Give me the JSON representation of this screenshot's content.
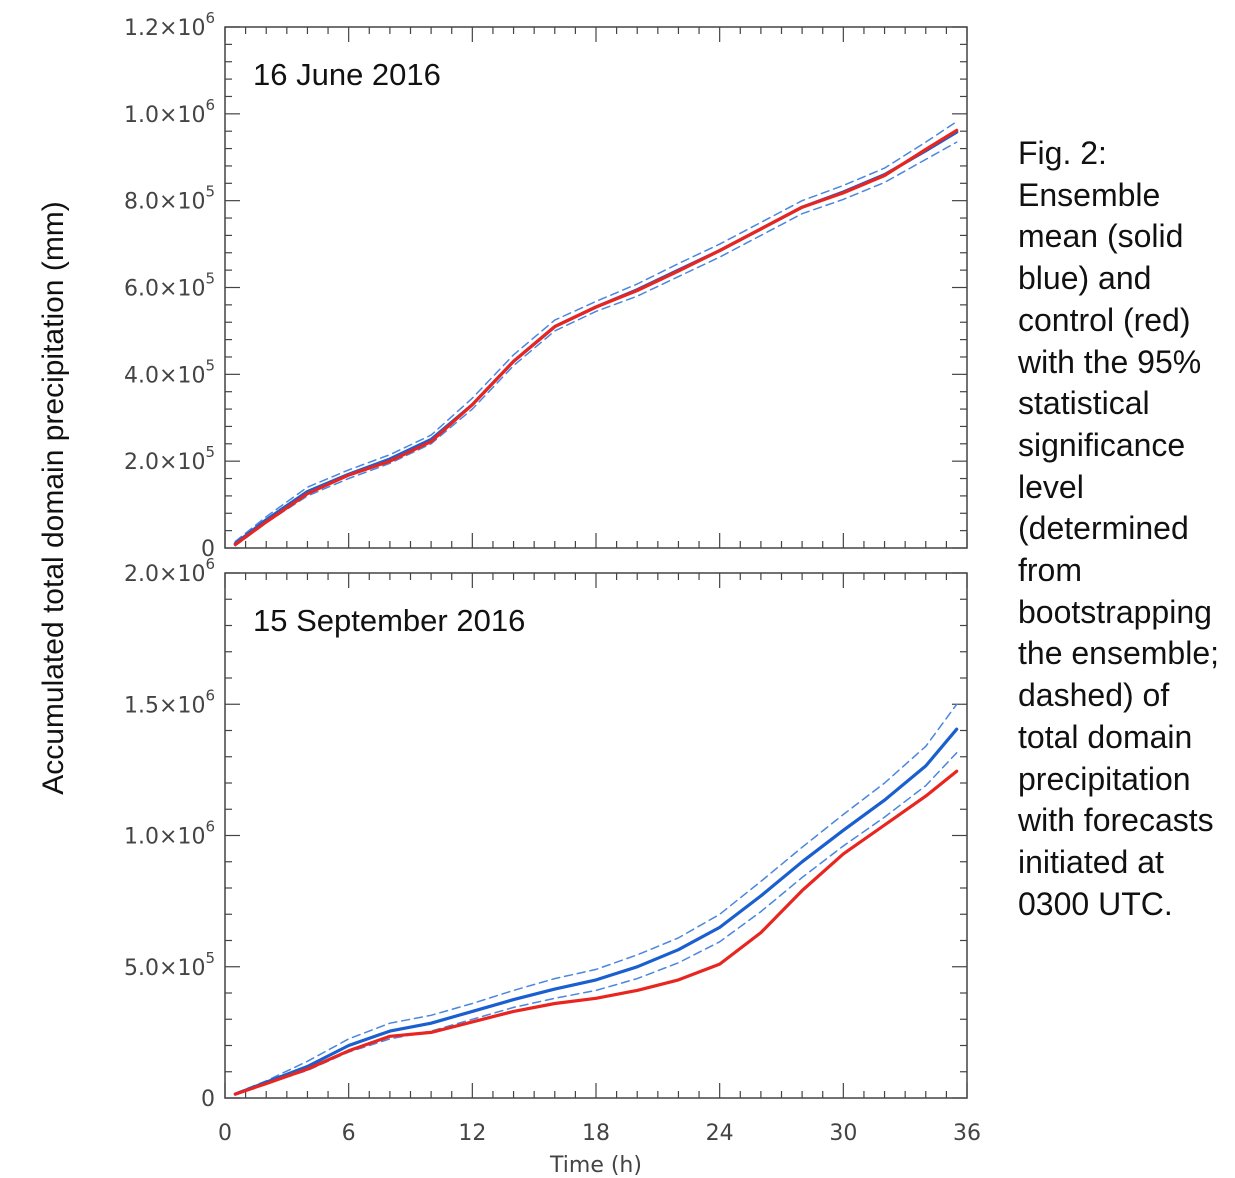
{
  "figure": {
    "ylabel": "Accumulated total domain precipitation (mm)",
    "xlabel": "Time (h)",
    "caption": "Fig. 2:\nEnsemble\nmean (solid\nblue) and\ncontrol (red)\nwith the 95%\nstatistical\nsignificance\nlevel\n(determined\nfrom\nbootstrapping\nthe ensemble;\ndashed) of\ntotal domain\nprecipitation\nwith forecasts\ninitiated at\n0300 UTC."
  },
  "colors": {
    "ensemble_mean": "#1a5fd0",
    "control": "#e8261f",
    "significance": "#4a86e0",
    "axes": "#444444"
  },
  "chart_data": [
    {
      "type": "line",
      "panel_label": "16 June 2016",
      "xlabel": "Time (h)",
      "ylabel": "Accumulated total domain precipitation (mm)",
      "xlim": [
        0,
        36
      ],
      "ylim": [
        0,
        1200000
      ],
      "xticks": [
        0,
        6,
        12,
        18,
        24,
        30,
        36
      ],
      "yticks": [
        {
          "value": 0,
          "mant": "0",
          "exp": ""
        },
        {
          "value": 200000,
          "mant": "2.0×10",
          "exp": "5"
        },
        {
          "value": 400000,
          "mant": "4.0×10",
          "exp": "5"
        },
        {
          "value": 600000,
          "mant": "6.0×10",
          "exp": "5"
        },
        {
          "value": 800000,
          "mant": "8.0×10",
          "exp": "5"
        },
        {
          "value": 1000000,
          "mant": "1.0×10",
          "exp": "6"
        },
        {
          "value": 1200000,
          "mant": "1.2×10",
          "exp": "6"
        }
      ],
      "show_xtick_labels": false,
      "grid": false,
      "series": [
        {
          "role": "ensemble_mean",
          "x": [
            0.5,
            2,
            4,
            6,
            8,
            10,
            12,
            14,
            16,
            18,
            20,
            22,
            24,
            26,
            28,
            30,
            32,
            34,
            35.5
          ],
          "y": [
            10000,
            65000,
            130000,
            170000,
            205000,
            250000,
            330000,
            430000,
            510000,
            555000,
            595000,
            640000,
            685000,
            735000,
            785000,
            820000,
            860000,
            915000,
            958000
          ]
        },
        {
          "role": "control",
          "x": [
            0.5,
            2,
            4,
            6,
            8,
            10,
            12,
            14,
            16,
            18,
            20,
            22,
            24,
            26,
            28,
            30,
            32,
            34,
            35.5
          ],
          "y": [
            8000,
            60000,
            125000,
            168000,
            200000,
            245000,
            330000,
            430000,
            510000,
            555000,
            593000,
            638000,
            685000,
            735000,
            785000,
            818000,
            858000,
            918000,
            962000
          ]
        },
        {
          "role": "significance_upper",
          "x": [
            0.5,
            2,
            4,
            6,
            8,
            10,
            12,
            14,
            16,
            18,
            20,
            22,
            24,
            26,
            28,
            30,
            32,
            34,
            35.5
          ],
          "y": [
            15000,
            72000,
            140000,
            180000,
            215000,
            260000,
            345000,
            445000,
            525000,
            568000,
            608000,
            655000,
            700000,
            750000,
            800000,
            835000,
            875000,
            935000,
            982000
          ]
        },
        {
          "role": "significance_lower",
          "x": [
            0.5,
            2,
            4,
            6,
            8,
            10,
            12,
            14,
            16,
            18,
            20,
            22,
            24,
            26,
            28,
            30,
            32,
            34,
            35.5
          ],
          "y": [
            5000,
            58000,
            120000,
            160000,
            195000,
            240000,
            320000,
            420000,
            500000,
            545000,
            580000,
            625000,
            670000,
            720000,
            770000,
            803000,
            842000,
            895000,
            935000
          ]
        }
      ]
    },
    {
      "type": "line",
      "panel_label": "15 September 2016",
      "xlabel": "Time (h)",
      "ylabel": "Accumulated total domain precipitation (mm)",
      "xlim": [
        0,
        36
      ],
      "ylim": [
        0,
        2000000
      ],
      "xticks": [
        0,
        6,
        12,
        18,
        24,
        30,
        36
      ],
      "yticks": [
        {
          "value": 0,
          "mant": "0",
          "exp": ""
        },
        {
          "value": 500000,
          "mant": "5.0×10",
          "exp": "5"
        },
        {
          "value": 1000000,
          "mant": "1.0×10",
          "exp": "6"
        },
        {
          "value": 1500000,
          "mant": "1.5×10",
          "exp": "6"
        },
        {
          "value": 2000000,
          "mant": "2.0×10",
          "exp": "6"
        }
      ],
      "show_xtick_labels": true,
      "grid": false,
      "series": [
        {
          "role": "ensemble_mean",
          "x": [
            0.5,
            2,
            4,
            6,
            8,
            10,
            12,
            14,
            16,
            18,
            20,
            22,
            24,
            26,
            28,
            30,
            32,
            34,
            35.5
          ],
          "y": [
            15000,
            60000,
            120000,
            200000,
            255000,
            285000,
            330000,
            375000,
            415000,
            450000,
            500000,
            565000,
            650000,
            770000,
            900000,
            1020000,
            1135000,
            1265000,
            1405000
          ]
        },
        {
          "role": "control",
          "x": [
            0.5,
            2,
            4,
            6,
            8,
            10,
            12,
            14,
            16,
            18,
            20,
            22,
            24,
            26,
            28,
            30,
            32,
            34,
            35.5
          ],
          "y": [
            15000,
            55000,
            110000,
            180000,
            235000,
            250000,
            290000,
            330000,
            360000,
            380000,
            410000,
            450000,
            510000,
            630000,
            790000,
            930000,
            1040000,
            1150000,
            1245000
          ]
        },
        {
          "role": "significance_upper",
          "x": [
            0.5,
            2,
            4,
            6,
            8,
            10,
            12,
            14,
            16,
            18,
            20,
            22,
            24,
            26,
            28,
            30,
            32,
            34,
            35.5
          ],
          "y": [
            18000,
            65000,
            140000,
            225000,
            285000,
            315000,
            360000,
            410000,
            455000,
            490000,
            545000,
            610000,
            700000,
            825000,
            955000,
            1080000,
            1200000,
            1340000,
            1500000
          ]
        },
        {
          "role": "significance_lower",
          "x": [
            0.5,
            2,
            4,
            6,
            8,
            10,
            12,
            14,
            16,
            18,
            20,
            22,
            24,
            26,
            28,
            30,
            32,
            34,
            35.5
          ],
          "y": [
            12000,
            55000,
            105000,
            175000,
            225000,
            255000,
            300000,
            345000,
            380000,
            410000,
            455000,
            515000,
            595000,
            710000,
            840000,
            960000,
            1070000,
            1190000,
            1315000
          ]
        }
      ]
    }
  ]
}
